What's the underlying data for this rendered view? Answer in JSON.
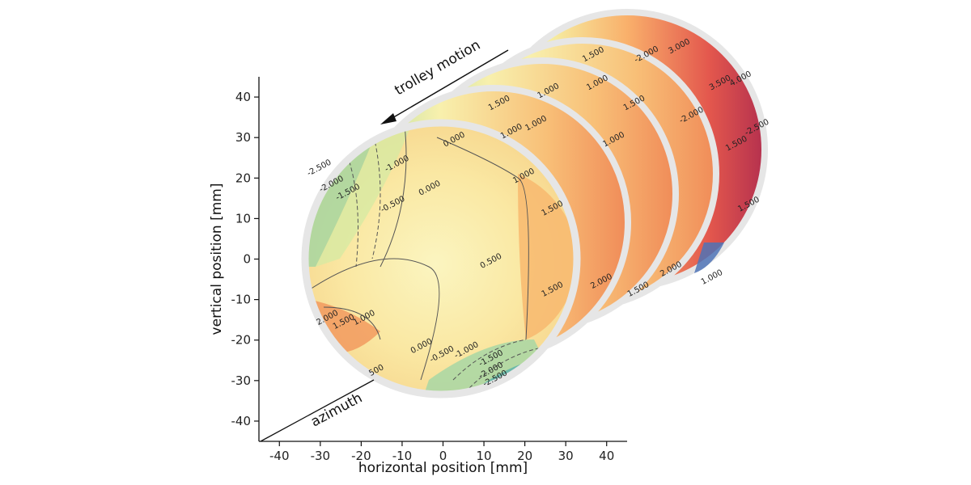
{
  "chart_data": {
    "type": "contour",
    "xlabel": "horizontal position [mm]",
    "ylabel": "vertical position [mm]",
    "xlim": [
      -45,
      45
    ],
    "ylim": [
      -45,
      45
    ],
    "xticks": [
      -40,
      -30,
      -20,
      -10,
      0,
      10,
      20,
      30,
      40
    ],
    "yticks": [
      -40,
      -30,
      -20,
      -10,
      0,
      10,
      20,
      30,
      40
    ],
    "annotations": {
      "trolley": "trolley motion",
      "azimuth": "azimuth"
    },
    "slices": [
      {
        "name": "slice-front",
        "contour_labels": [
          {
            "text": "-2.500",
            "x": -30,
            "y": 22
          },
          {
            "text": "-2.000",
            "x": -27,
            "y": 18
          },
          {
            "text": "-1.500",
            "x": -23,
            "y": 16
          },
          {
            "text": "-1.000",
            "x": -11,
            "y": 23
          },
          {
            "text": "-0.500",
            "x": -12,
            "y": 13
          },
          {
            "text": "0.000",
            "x": -3,
            "y": 17
          },
          {
            "text": "1.000",
            "x": 20,
            "y": 20
          },
          {
            "text": "0.500",
            "x": 12,
            "y": -1
          },
          {
            "text": "1.500",
            "x": 27,
            "y": 12
          },
          {
            "text": "2.000",
            "x": 39,
            "y": -6
          },
          {
            "text": "1.500",
            "x": 27,
            "y": -8
          },
          {
            "text": "1.000",
            "x": -19,
            "y": -15
          },
          {
            "text": "1.500",
            "x": -24,
            "y": -16
          },
          {
            "text": "2.000",
            "x": -28,
            "y": -15
          },
          {
            "text": "0.000",
            "x": -5,
            "y": -22
          },
          {
            "text": "-0.500",
            "x": 0,
            "y": -24
          },
          {
            "text": "-1.000",
            "x": 6,
            "y": -23
          },
          {
            "text": "-1.500",
            "x": 12,
            "y": -25
          },
          {
            "text": "-2.000",
            "x": 12,
            "y": -28
          },
          {
            "text": "-2.500",
            "x": 13,
            "y": -30
          },
          {
            "text": "500",
            "x": -16,
            "y": -28
          },
          {
            "text": "0.000",
            "x": 3,
            "y": 29
          }
        ]
      },
      {
        "name": "slice-2",
        "contour_labels": [
          {
            "text": "1.500",
            "x": 14,
            "y": 38
          },
          {
            "text": "1.000",
            "x": 17,
            "y": 31
          },
          {
            "text": "1.000",
            "x": 23,
            "y": 33
          },
          {
            "text": "1.500",
            "x": 48,
            "y": -8
          },
          {
            "text": "2.000",
            "x": 56,
            "y": -3
          }
        ]
      },
      {
        "name": "slice-3",
        "contour_labels": [
          {
            "text": "1.000",
            "x": 26,
            "y": 41
          },
          {
            "text": "1.000",
            "x": 42,
            "y": 29
          },
          {
            "text": "1.000",
            "x": 66,
            "y": -5
          }
        ]
      },
      {
        "name": "slice-4",
        "contour_labels": [
          {
            "text": "1.500",
            "x": 37,
            "y": 50
          },
          {
            "text": "1.000",
            "x": 38,
            "y": 43
          },
          {
            "text": "1.500",
            "x": 47,
            "y": 38
          },
          {
            "text": "1.500",
            "x": 75,
            "y": 13
          }
        ]
      },
      {
        "name": "slice-back",
        "contour_labels": [
          {
            "text": "3.000",
            "x": 58,
            "y": 52
          },
          {
            "text": "-2.000",
            "x": 50,
            "y": 50
          },
          {
            "text": "3.500",
            "x": 68,
            "y": 43
          },
          {
            "text": "4.000",
            "x": 73,
            "y": 44
          },
          {
            "text": "-2.000",
            "x": 61,
            "y": 35
          },
          {
            "text": "-2.500",
            "x": 77,
            "y": 32
          },
          {
            "text": "1.500",
            "x": 72,
            "y": 28
          }
        ]
      }
    ]
  }
}
